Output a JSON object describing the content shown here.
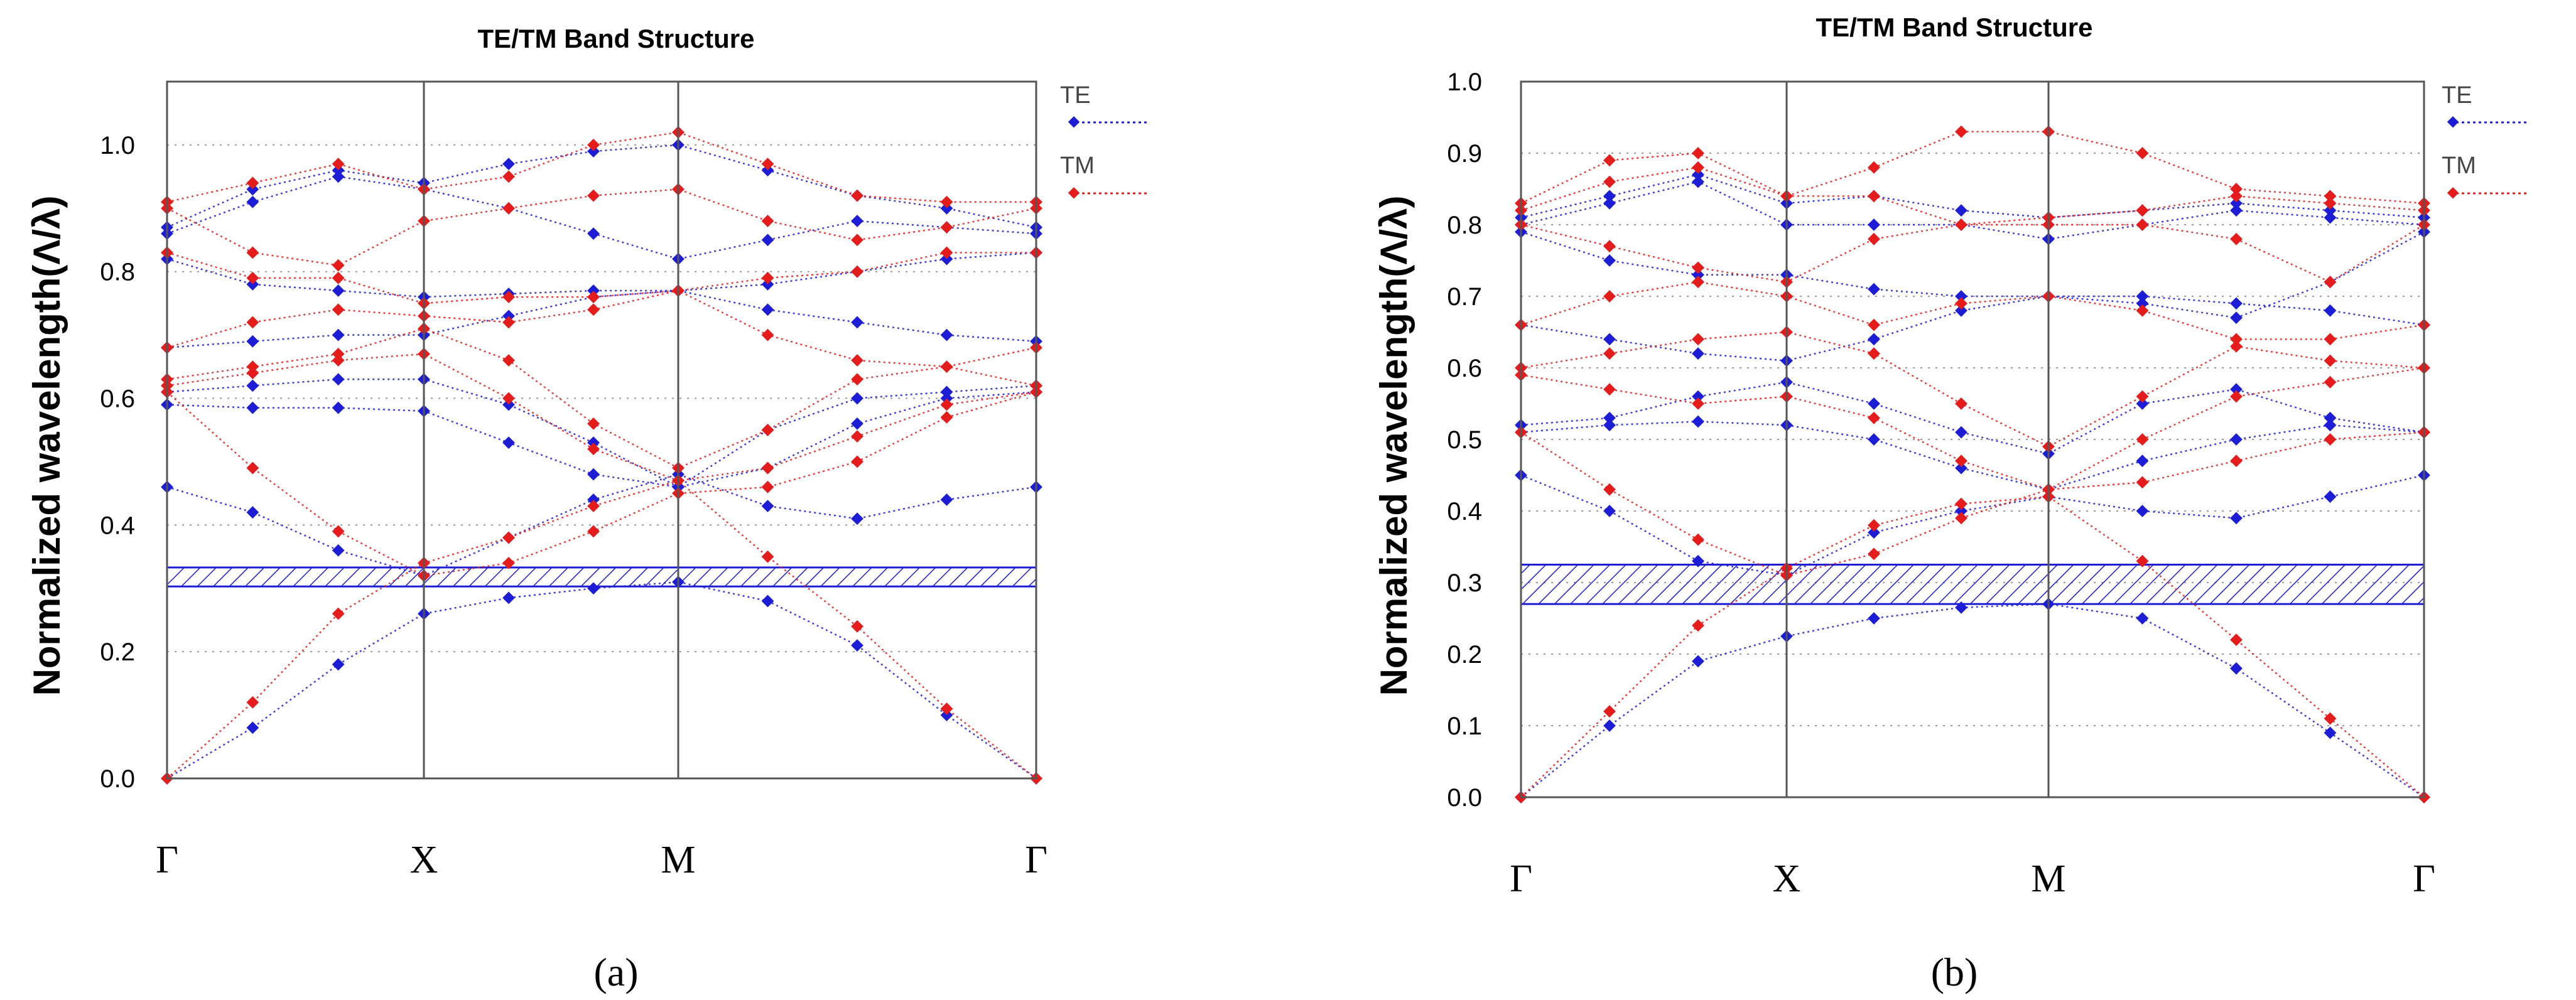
{
  "chart_data": [
    {
      "type": "scatter",
      "panel_label": "a",
      "title": "TE/TM Band Structure",
      "xlabel": "",
      "ylabel": "Normalized wavelength(Λ/λ)",
      "ylim": [
        0.0,
        1.1
      ],
      "y_ticks": [
        "0.0",
        "0.2",
        "0.4",
        "0.6",
        "0.8",
        "1.0"
      ],
      "x_ticks": [
        "Γ",
        "X",
        "M",
        "Γ"
      ],
      "legend": [
        "TE",
        "TM"
      ],
      "bandgap": [
        0.303,
        0.333
      ],
      "series": [
        {
          "name": "TE",
          "color": "#1d1dd6",
          "bands": [
            [
              0.0,
              0.08,
              0.18,
              0.26,
              0.285,
              0.3,
              0.31,
              0.28,
              0.21,
              0.1,
              0.0
            ],
            [
              0.46,
              0.42,
              0.36,
              0.32,
              0.38,
              0.44,
              0.48,
              0.43,
              0.41,
              0.44,
              0.46
            ],
            [
              0.59,
              0.585,
              0.585,
              0.58,
              0.53,
              0.48,
              0.46,
              0.49,
              0.56,
              0.6,
              0.61
            ],
            [
              0.61,
              0.62,
              0.63,
              0.63,
              0.59,
              0.53,
              0.46,
              0.55,
              0.6,
              0.61,
              0.62
            ],
            [
              0.68,
              0.69,
              0.7,
              0.7,
              0.73,
              0.76,
              0.77,
              0.74,
              0.72,
              0.7,
              0.69
            ],
            [
              0.82,
              0.78,
              0.77,
              0.76,
              0.765,
              0.77,
              0.77,
              0.78,
              0.8,
              0.82,
              0.83
            ],
            [
              0.86,
              0.91,
              0.95,
              0.93,
              0.9,
              0.86,
              0.82,
              0.85,
              0.88,
              0.87,
              0.86
            ],
            [
              0.87,
              0.93,
              0.96,
              0.94,
              0.97,
              0.99,
              1.0,
              0.96,
              0.92,
              0.9,
              0.87
            ]
          ]
        },
        {
          "name": "TM",
          "color": "#e51c1c",
          "bands": [
            [
              0.0,
              0.12,
              0.26,
              0.34,
              0.38,
              0.43,
              0.47,
              0.35,
              0.24,
              0.11,
              0.0
            ],
            [
              0.61,
              0.49,
              0.39,
              0.32,
              0.34,
              0.39,
              0.45,
              0.46,
              0.5,
              0.57,
              0.61
            ],
            [
              0.62,
              0.64,
              0.66,
              0.67,
              0.6,
              0.52,
              0.47,
              0.49,
              0.54,
              0.59,
              0.61
            ],
            [
              0.63,
              0.65,
              0.67,
              0.71,
              0.66,
              0.56,
              0.49,
              0.55,
              0.63,
              0.65,
              0.62
            ],
            [
              0.68,
              0.72,
              0.74,
              0.73,
              0.72,
              0.74,
              0.77,
              0.7,
              0.66,
              0.65,
              0.68
            ],
            [
              0.83,
              0.79,
              0.79,
              0.75,
              0.76,
              0.76,
              0.77,
              0.79,
              0.8,
              0.83,
              0.83
            ],
            [
              0.9,
              0.83,
              0.81,
              0.88,
              0.9,
              0.92,
              0.93,
              0.88,
              0.85,
              0.87,
              0.9
            ],
            [
              0.91,
              0.94,
              0.97,
              0.93,
              0.95,
              1.0,
              1.02,
              0.97,
              0.92,
              0.91,
              0.91
            ]
          ]
        }
      ]
    },
    {
      "type": "scatter",
      "panel_label": "b",
      "title": "TE/TM Band Structure",
      "xlabel": "",
      "ylabel": "Normalized wavelength(Λ/λ)",
      "ylim": [
        0.0,
        1.0
      ],
      "y_ticks": [
        "0.0",
        "0.1",
        "0.2",
        "0.3",
        "0.4",
        "0.5",
        "0.6",
        "0.7",
        "0.8",
        "0.9",
        "1.0"
      ],
      "x_ticks": [
        "Γ",
        "X",
        "M",
        "Γ"
      ],
      "legend": [
        "TE",
        "TM"
      ],
      "bandgap": [
        0.27,
        0.325
      ],
      "series": [
        {
          "name": "TE",
          "color": "#1d1dd6",
          "bands": [
            [
              0.0,
              0.1,
              0.19,
              0.225,
              0.25,
              0.265,
              0.27,
              0.25,
              0.18,
              0.09,
              0.0
            ],
            [
              0.45,
              0.4,
              0.33,
              0.31,
              0.37,
              0.4,
              0.42,
              0.4,
              0.39,
              0.42,
              0.45
            ],
            [
              0.51,
              0.52,
              0.525,
              0.52,
              0.5,
              0.46,
              0.43,
              0.47,
              0.5,
              0.52,
              0.51
            ],
            [
              0.52,
              0.53,
              0.56,
              0.58,
              0.55,
              0.51,
              0.48,
              0.55,
              0.57,
              0.53,
              0.51
            ],
            [
              0.66,
              0.64,
              0.62,
              0.61,
              0.64,
              0.68,
              0.7,
              0.7,
              0.69,
              0.68,
              0.66
            ],
            [
              0.79,
              0.75,
              0.73,
              0.73,
              0.71,
              0.7,
              0.7,
              0.69,
              0.67,
              0.72,
              0.79
            ],
            [
              0.8,
              0.83,
              0.86,
              0.8,
              0.8,
              0.8,
              0.78,
              0.8,
              0.82,
              0.81,
              0.8
            ],
            [
              0.81,
              0.84,
              0.87,
              0.83,
              0.84,
              0.82,
              0.81,
              0.82,
              0.83,
              0.82,
              0.81
            ]
          ]
        },
        {
          "name": "TM",
          "color": "#e51c1c",
          "bands": [
            [
              0.0,
              0.12,
              0.24,
              0.32,
              0.38,
              0.41,
              0.42,
              0.33,
              0.22,
              0.11,
              0.0
            ],
            [
              0.51,
              0.43,
              0.36,
              0.31,
              0.34,
              0.39,
              0.43,
              0.44,
              0.47,
              0.5,
              0.51
            ],
            [
              0.59,
              0.57,
              0.55,
              0.56,
              0.53,
              0.47,
              0.43,
              0.5,
              0.56,
              0.58,
              0.6
            ],
            [
              0.6,
              0.62,
              0.64,
              0.65,
              0.62,
              0.55,
              0.49,
              0.56,
              0.63,
              0.61,
              0.6
            ],
            [
              0.66,
              0.7,
              0.72,
              0.7,
              0.66,
              0.69,
              0.7,
              0.68,
              0.64,
              0.64,
              0.66
            ],
            [
              0.8,
              0.77,
              0.74,
              0.72,
              0.78,
              0.8,
              0.8,
              0.8,
              0.78,
              0.72,
              0.8
            ],
            [
              0.82,
              0.86,
              0.88,
              0.84,
              0.84,
              0.8,
              0.81,
              0.82,
              0.84,
              0.83,
              0.82
            ],
            [
              0.83,
              0.89,
              0.9,
              0.84,
              0.88,
              0.93,
              0.93,
              0.9,
              0.85,
              0.84,
              0.83
            ]
          ]
        }
      ]
    }
  ],
  "captions": [
    "(a)",
    "(b)"
  ],
  "colors": {
    "te": "#1d1dd6",
    "tm": "#e51c1c",
    "grid": "#9a9a9a",
    "axis": "#555555"
  }
}
